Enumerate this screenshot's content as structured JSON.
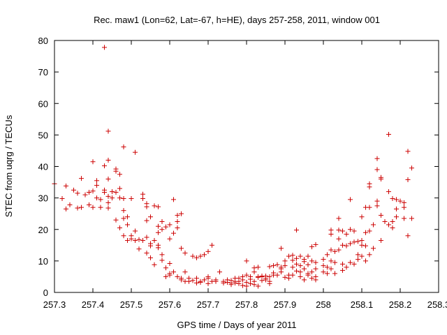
{
  "chart_data": {
    "type": "scatter",
    "title": "Rec. maw1 (Lon=62, Lat=-67, h=HE), days 257-258, 2011, window 001",
    "xlabel": "GPS time / Days of year 2011",
    "ylabel": "STEC from uqrg / TECUs",
    "xlim": [
      257.3,
      258.3
    ],
    "ylim": [
      0,
      80
    ],
    "xticks": [
      257.3,
      257.4,
      257.5,
      257.6,
      257.7,
      257.8,
      257.9,
      258.0,
      258.1,
      258.2,
      258.3
    ],
    "xtick_labels": [
      "257.3",
      "257.4",
      "257.5",
      "257.6",
      "257.7",
      "257.8",
      "257.9",
      "258",
      "258.1",
      "258.2",
      "258.3"
    ],
    "yticks": [
      0,
      10,
      20,
      30,
      40,
      50,
      60,
      70,
      80
    ],
    "ytick_labels": [
      "0",
      "10",
      "20",
      "30",
      "40",
      "50",
      "60",
      "70",
      "80"
    ],
    "grid": false,
    "legend": "none",
    "marker": "plus",
    "color": "#cc0000",
    "points": [
      [
        257.3,
        34.5
      ],
      [
        257.32,
        29.8
      ],
      [
        257.33,
        26.5
      ],
      [
        257.34,
        27.8
      ],
      [
        257.33,
        33.8
      ],
      [
        257.35,
        32.5
      ],
      [
        257.36,
        26.8
      ],
      [
        257.36,
        31.5
      ],
      [
        257.37,
        36.2
      ],
      [
        257.37,
        27.0
      ],
      [
        257.38,
        31.0
      ],
      [
        257.39,
        31.8
      ],
      [
        257.39,
        27.8
      ],
      [
        257.4,
        32.2
      ],
      [
        257.4,
        27.0
      ],
      [
        257.4,
        41.5
      ],
      [
        257.41,
        30.0
      ],
      [
        257.41,
        34.0
      ],
      [
        257.41,
        35.5
      ],
      [
        257.42,
        27.0
      ],
      [
        257.42,
        29.5
      ],
      [
        257.43,
        32.5
      ],
      [
        257.43,
        31.8
      ],
      [
        257.43,
        40.2
      ],
      [
        257.43,
        77.8
      ],
      [
        257.44,
        28.5
      ],
      [
        257.44,
        30.5
      ],
      [
        257.44,
        36.0
      ],
      [
        257.44,
        26.8
      ],
      [
        257.44,
        42.0
      ],
      [
        257.44,
        51.2
      ],
      [
        257.45,
        32.0
      ],
      [
        257.45,
        30.0
      ],
      [
        257.46,
        38.5
      ],
      [
        257.46,
        23.0
      ],
      [
        257.46,
        39.2
      ],
      [
        257.46,
        31.8
      ],
      [
        257.47,
        33.0
      ],
      [
        257.47,
        30.0
      ],
      [
        257.47,
        37.5
      ],
      [
        257.47,
        20.5
      ],
      [
        257.48,
        29.8
      ],
      [
        257.48,
        26.0
      ],
      [
        257.48,
        23.5
      ],
      [
        257.48,
        18.0
      ],
      [
        257.48,
        46.2
      ],
      [
        257.49,
        24.0
      ],
      [
        257.49,
        21.5
      ],
      [
        257.49,
        16.5
      ],
      [
        257.5,
        29.8
      ],
      [
        257.5,
        17.0
      ],
      [
        257.5,
        18.0
      ],
      [
        257.51,
        19.5
      ],
      [
        257.51,
        16.5
      ],
      [
        257.51,
        44.5
      ],
      [
        257.52,
        16.8
      ],
      [
        257.52,
        13.8
      ],
      [
        257.53,
        16.5
      ],
      [
        257.53,
        31.2
      ],
      [
        257.53,
        29.8
      ],
      [
        257.54,
        28.2
      ],
      [
        257.54,
        27.2
      ],
      [
        257.54,
        22.8
      ],
      [
        257.54,
        17.5
      ],
      [
        257.54,
        12.5
      ],
      [
        257.55,
        14.8
      ],
      [
        257.55,
        15.5
      ],
      [
        257.55,
        11.0
      ],
      [
        257.55,
        24.0
      ],
      [
        257.56,
        27.5
      ],
      [
        257.56,
        16.5
      ],
      [
        257.56,
        8.8
      ],
      [
        257.57,
        21.0
      ],
      [
        257.57,
        19.0
      ],
      [
        257.57,
        14.2
      ],
      [
        257.57,
        27.2
      ],
      [
        257.57,
        15.0
      ],
      [
        257.58,
        20.0
      ],
      [
        257.58,
        12.0
      ],
      [
        257.58,
        10.2
      ],
      [
        257.58,
        22.5
      ],
      [
        257.59,
        20.8
      ],
      [
        257.59,
        7.8
      ],
      [
        257.59,
        5.0
      ],
      [
        257.6,
        17.0
      ],
      [
        257.6,
        21.5
      ],
      [
        257.6,
        6.0
      ],
      [
        257.6,
        9.2
      ],
      [
        257.6,
        5.5
      ],
      [
        257.61,
        29.5
      ],
      [
        257.61,
        18.8
      ],
      [
        257.61,
        6.5
      ],
      [
        257.62,
        20.5
      ],
      [
        257.62,
        22.5
      ],
      [
        257.62,
        24.5
      ],
      [
        257.62,
        5.0
      ],
      [
        257.63,
        4.5
      ],
      [
        257.63,
        4.0
      ],
      [
        257.63,
        25.0
      ],
      [
        257.63,
        14.0
      ],
      [
        257.64,
        12.5
      ],
      [
        257.64,
        6.5
      ],
      [
        257.64,
        3.5
      ],
      [
        257.65,
        4.5
      ],
      [
        257.65,
        3.5
      ],
      [
        257.66,
        11.5
      ],
      [
        257.66,
        3.8
      ],
      [
        257.67,
        3.0
      ],
      [
        257.67,
        11.0
      ],
      [
        257.67,
        4.5
      ],
      [
        257.68,
        3.5
      ],
      [
        257.68,
        3.2
      ],
      [
        257.68,
        11.5
      ],
      [
        257.69,
        12.0
      ],
      [
        257.69,
        4.0
      ],
      [
        257.7,
        4.5
      ],
      [
        257.7,
        2.8
      ],
      [
        257.7,
        13.0
      ],
      [
        257.7,
        5.0
      ],
      [
        257.71,
        3.5
      ],
      [
        257.71,
        15.0
      ],
      [
        257.72,
        3.5
      ],
      [
        257.72,
        4.0
      ],
      [
        257.73,
        6.5
      ],
      [
        257.74,
        3.5
      ],
      [
        257.74,
        3.0
      ],
      [
        257.75,
        3.2
      ],
      [
        257.75,
        4.0
      ],
      [
        257.76,
        3.0
      ],
      [
        257.76,
        2.5
      ],
      [
        257.76,
        3.8
      ],
      [
        257.77,
        3.5
      ],
      [
        257.77,
        4.5
      ],
      [
        257.77,
        3.0
      ],
      [
        257.78,
        2.8
      ],
      [
        257.78,
        4.5
      ],
      [
        257.78,
        3.5
      ],
      [
        257.79,
        2.2
      ],
      [
        257.79,
        5.0
      ],
      [
        257.79,
        4.0
      ],
      [
        257.8,
        3.2
      ],
      [
        257.8,
        5.5
      ],
      [
        257.8,
        2.0
      ],
      [
        257.8,
        10.0
      ],
      [
        257.81,
        4.2
      ],
      [
        257.81,
        2.8
      ],
      [
        257.81,
        5.0
      ],
      [
        257.82,
        7.8
      ],
      [
        257.82,
        6.5
      ],
      [
        257.82,
        3.5
      ],
      [
        257.82,
        2.5
      ],
      [
        257.83,
        5.0
      ],
      [
        257.83,
        2.0
      ],
      [
        257.83,
        8.0
      ],
      [
        257.83,
        4.8
      ],
      [
        257.84,
        5.2
      ],
      [
        257.84,
        3.8
      ],
      [
        257.84,
        5.0
      ],
      [
        257.85,
        5.2
      ],
      [
        257.85,
        4.5
      ],
      [
        257.85,
        4.0
      ],
      [
        257.86,
        5.0
      ],
      [
        257.86,
        8.2
      ],
      [
        257.86,
        3.5
      ],
      [
        257.86,
        2.8
      ],
      [
        257.87,
        8.5
      ],
      [
        257.87,
        5.5
      ],
      [
        257.87,
        6.2
      ],
      [
        257.88,
        8.8
      ],
      [
        257.88,
        5.5
      ],
      [
        257.89,
        6.5
      ],
      [
        257.89,
        7.5
      ],
      [
        257.89,
        8.0
      ],
      [
        257.89,
        14.0
      ],
      [
        257.9,
        10.0
      ],
      [
        257.9,
        4.8
      ],
      [
        257.9,
        8.5
      ],
      [
        257.91,
        11.5
      ],
      [
        257.91,
        5.5
      ],
      [
        257.91,
        4.5
      ],
      [
        257.92,
        10.2
      ],
      [
        257.92,
        11.8
      ],
      [
        257.92,
        8.0
      ],
      [
        257.92,
        5.5
      ],
      [
        257.93,
        6.8
      ],
      [
        257.93,
        19.8
      ],
      [
        257.93,
        9.0
      ],
      [
        257.93,
        10.8
      ],
      [
        257.94,
        11.5
      ],
      [
        257.94,
        8.5
      ],
      [
        257.94,
        6.5
      ],
      [
        257.94,
        5.0
      ],
      [
        257.95,
        9.8
      ],
      [
        257.95,
        7.5
      ],
      [
        257.95,
        10.5
      ],
      [
        257.95,
        4.0
      ],
      [
        257.96,
        11.5
      ],
      [
        257.96,
        8.8
      ],
      [
        257.96,
        6.0
      ],
      [
        257.96,
        5.5
      ],
      [
        257.97,
        10.0
      ],
      [
        257.97,
        14.5
      ],
      [
        257.97,
        6.5
      ],
      [
        257.97,
        4.5
      ],
      [
        257.98,
        9.5
      ],
      [
        257.98,
        15.2
      ],
      [
        257.98,
        7.5
      ],
      [
        257.98,
        5.0
      ],
      [
        257.98,
        4.0
      ],
      [
        258.0,
        10.5
      ],
      [
        258.0,
        8.5
      ],
      [
        258.0,
        6.5
      ],
      [
        258.01,
        12.0
      ],
      [
        258.01,
        8.0
      ],
      [
        258.01,
        6.0
      ],
      [
        258.02,
        13.5
      ],
      [
        258.02,
        10.0
      ],
      [
        258.02,
        7.5
      ],
      [
        258.02,
        19.8
      ],
      [
        258.02,
        18.5
      ],
      [
        258.03,
        13.0
      ],
      [
        258.03,
        9.5
      ],
      [
        258.03,
        6.0
      ],
      [
        258.04,
        23.5
      ],
      [
        258.04,
        19.8
      ],
      [
        258.04,
        17.0
      ],
      [
        258.04,
        13.5
      ],
      [
        258.05,
        19.5
      ],
      [
        258.05,
        15.0
      ],
      [
        258.05,
        9.0
      ],
      [
        258.05,
        7.0
      ],
      [
        258.06,
        18.5
      ],
      [
        258.06,
        14.8
      ],
      [
        258.06,
        8.0
      ],
      [
        258.07,
        29.5
      ],
      [
        258.07,
        20.0
      ],
      [
        258.07,
        15.5
      ],
      [
        258.07,
        9.5
      ],
      [
        258.08,
        19.5
      ],
      [
        258.08,
        16.0
      ],
      [
        258.08,
        9.0
      ],
      [
        258.09,
        16.2
      ],
      [
        258.09,
        12.0
      ],
      [
        258.09,
        10.5
      ],
      [
        258.1,
        24.0
      ],
      [
        258.1,
        16.5
      ],
      [
        258.1,
        15.0
      ],
      [
        258.1,
        11.5
      ],
      [
        258.11,
        27.0
      ],
      [
        258.11,
        19.0
      ],
      [
        258.11,
        14.8
      ],
      [
        258.11,
        10.0
      ],
      [
        258.12,
        34.5
      ],
      [
        258.12,
        33.5
      ],
      [
        258.12,
        27.0
      ],
      [
        258.12,
        19.5
      ],
      [
        258.12,
        12.0
      ],
      [
        258.13,
        21.5
      ],
      [
        258.13,
        14.0
      ],
      [
        258.14,
        42.5
      ],
      [
        258.14,
        39.0
      ],
      [
        258.14,
        29.0
      ],
      [
        258.14,
        27.5
      ],
      [
        258.15,
        36.5
      ],
      [
        258.15,
        36.0
      ],
      [
        258.15,
        24.5
      ],
      [
        258.15,
        16.5
      ],
      [
        258.16,
        22.5
      ],
      [
        258.17,
        50.2
      ],
      [
        258.17,
        32.0
      ],
      [
        258.17,
        21.5
      ],
      [
        258.18,
        29.8
      ],
      [
        258.18,
        22.5
      ],
      [
        258.18,
        20.5
      ],
      [
        258.19,
        29.5
      ],
      [
        258.19,
        26.5
      ],
      [
        258.19,
        24.0
      ],
      [
        258.2,
        29.0
      ],
      [
        258.21,
        28.5
      ],
      [
        258.21,
        27.0
      ],
      [
        258.21,
        23.5
      ],
      [
        258.22,
        44.8
      ],
      [
        258.22,
        35.8
      ],
      [
        258.22,
        18.0
      ],
      [
        258.23,
        39.5
      ],
      [
        258.23,
        23.5
      ]
    ]
  }
}
